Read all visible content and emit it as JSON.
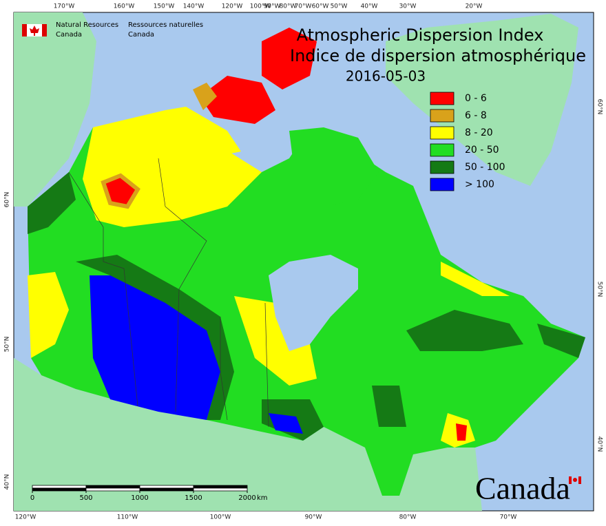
{
  "header": {
    "agency_en": [
      "Natural Resources",
      "Canada"
    ],
    "agency_fr": [
      "Ressources naturelles",
      "Canada"
    ]
  },
  "title": {
    "line1": "Atmospheric Dispersion Index",
    "line2": "Indice de dispersion atmosphérique",
    "date": "2016-05-03"
  },
  "legend": [
    {
      "label": "0 - 6",
      "color": "#ff0000"
    },
    {
      "label": "6 - 8",
      "color": "#d9a21b"
    },
    {
      "label": "8 - 20",
      "color": "#ffff00"
    },
    {
      "label": "20 - 50",
      "color": "#22dd22"
    },
    {
      "label": "50 - 100",
      "color": "#157a15"
    },
    {
      "label": "> 100",
      "color": "#0000ff"
    }
  ],
  "graticule": {
    "top": [
      "170°W",
      "160°W",
      "150°W",
      "140°W",
      "120°W",
      "100°W",
      "90°W",
      "80°W",
      "70°W",
      "60°W",
      "50°W",
      "40°W",
      "30°W",
      "20°W"
    ],
    "bottom": [
      "120°W",
      "110°W",
      "100°W",
      "90°W",
      "80°W",
      "70°W"
    ],
    "left": [
      "60°N",
      "50°N",
      "40°N"
    ],
    "right": [
      "60°N",
      "50°N",
      "40°N"
    ]
  },
  "scale_bar": {
    "ticks": [
      0,
      500,
      1000,
      1500,
      2000
    ],
    "unit": "km"
  },
  "wordmark": "Canada"
}
